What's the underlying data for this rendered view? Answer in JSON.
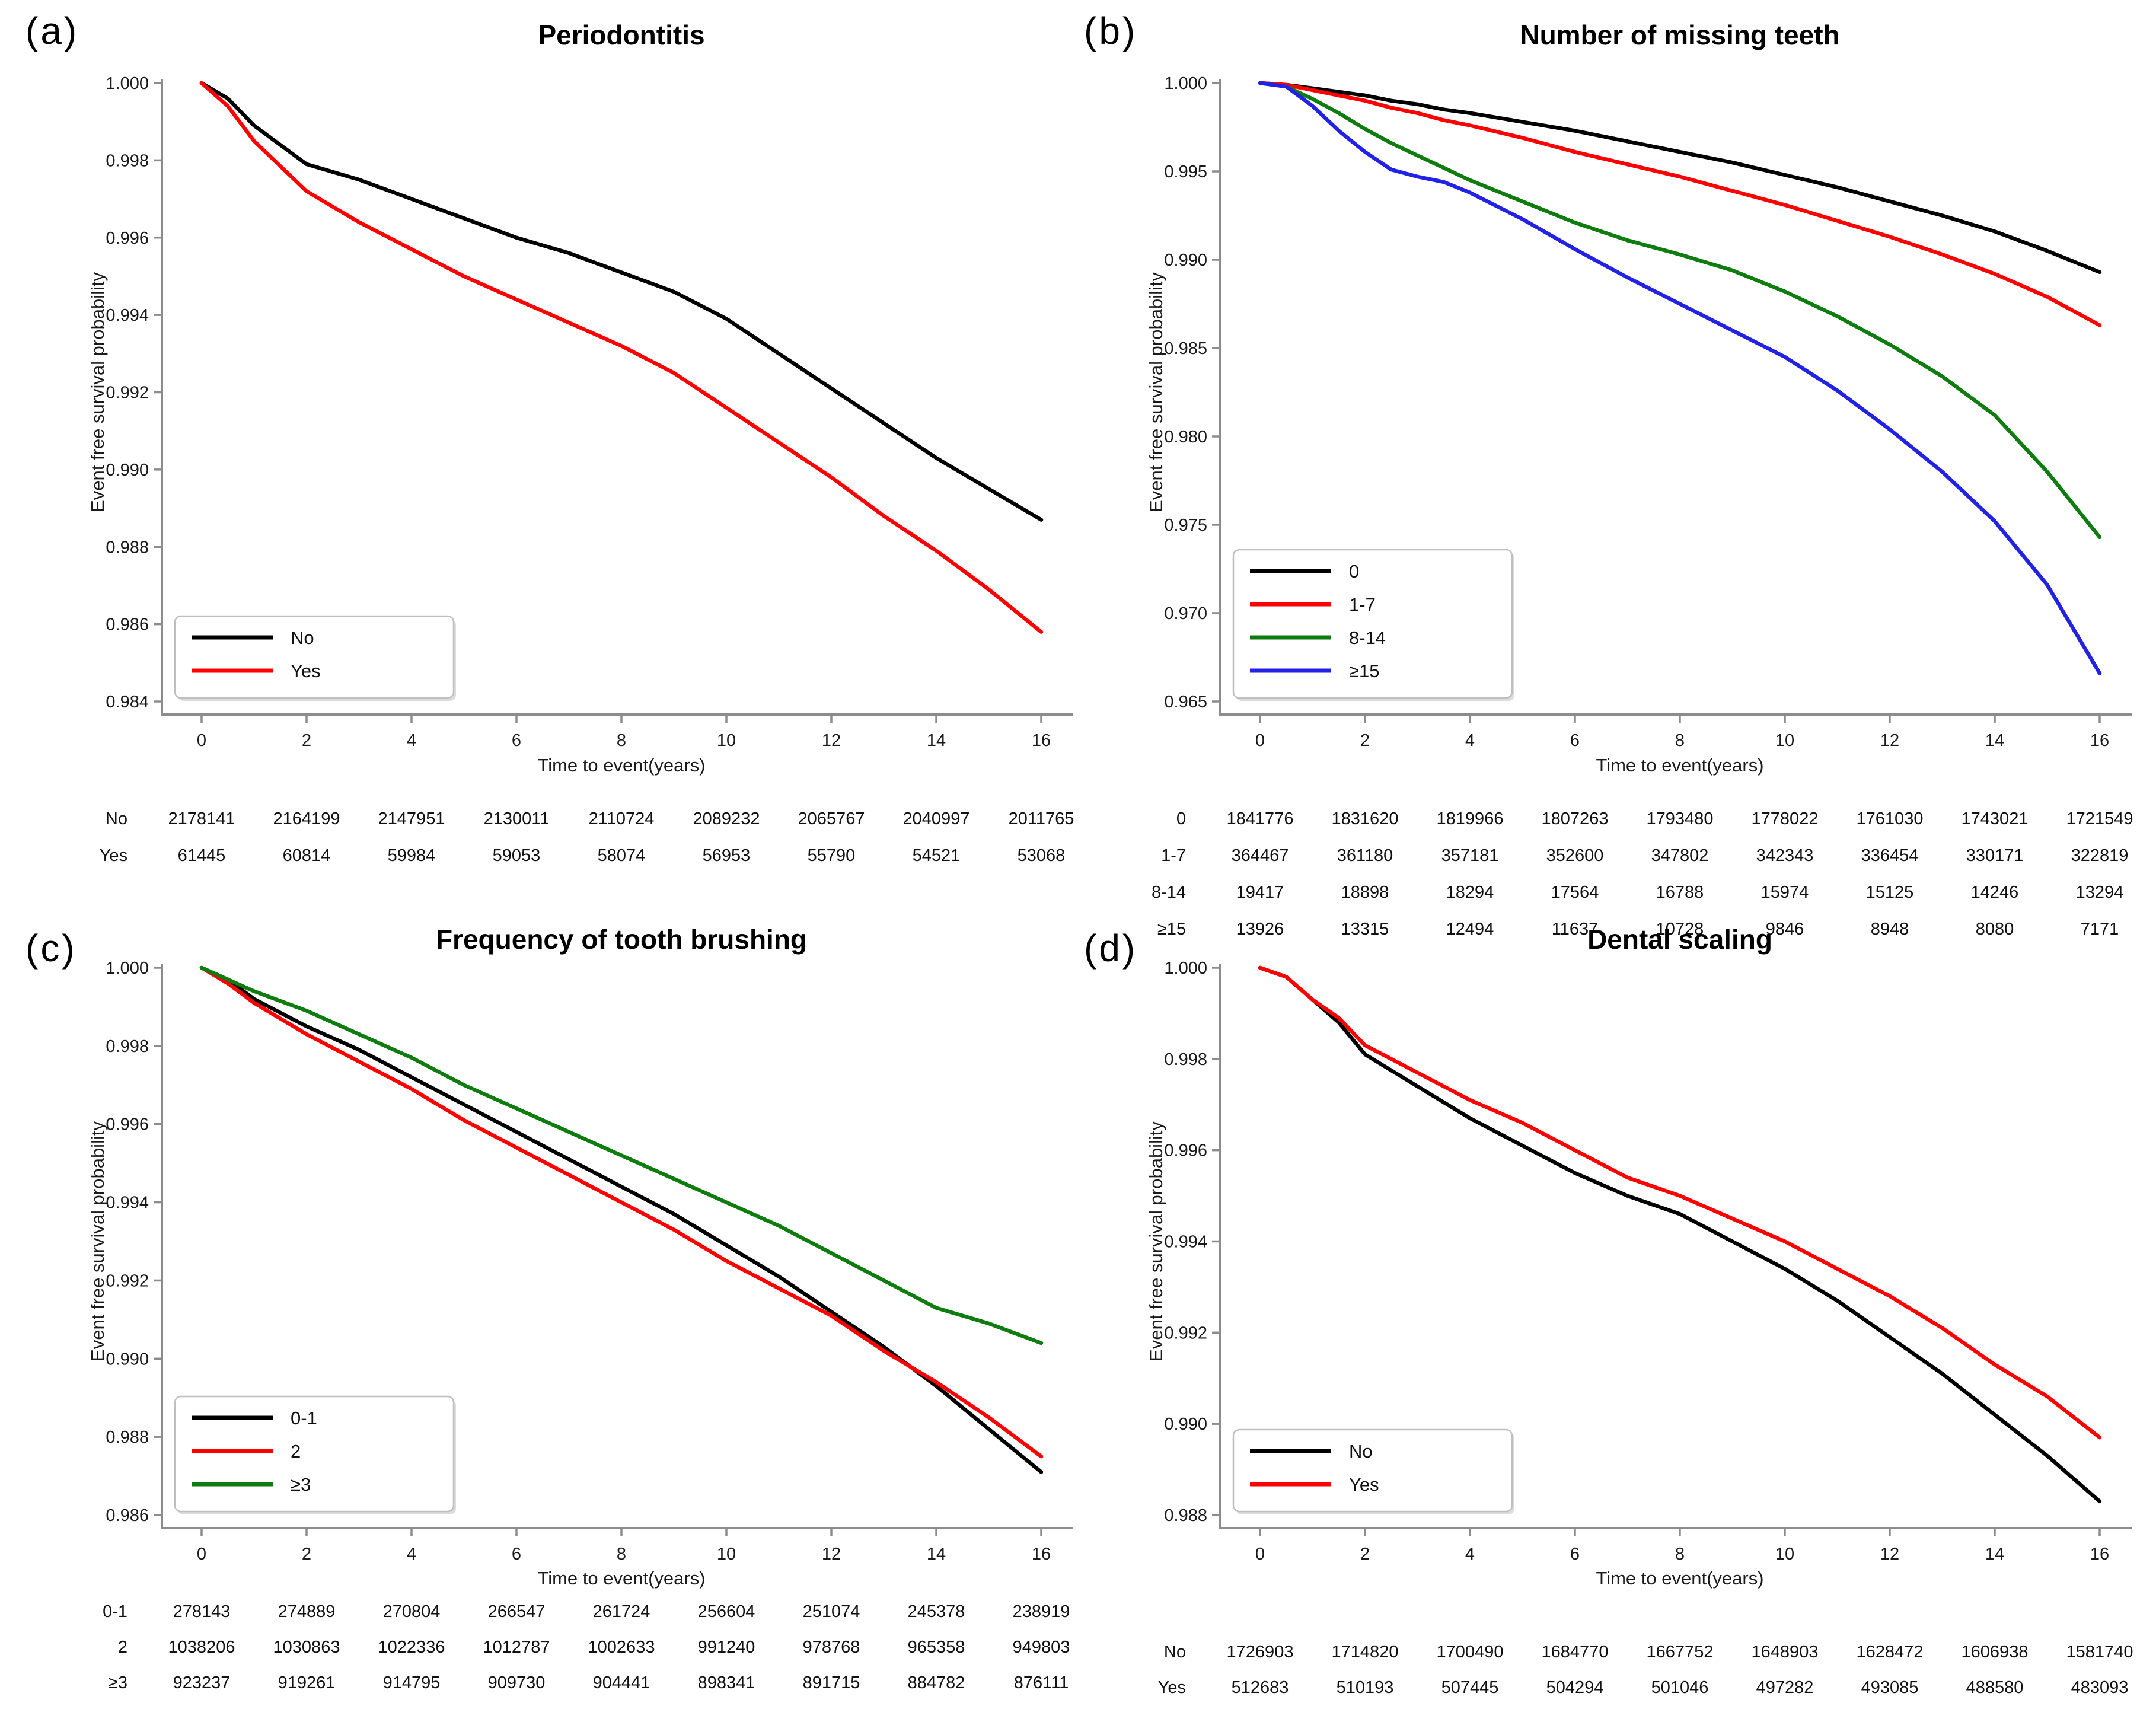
{
  "figure_caption_letters": [
    "(a)",
    "(b)",
    "(c)",
    "(d)"
  ],
  "chart_data": [
    {
      "type": "line",
      "panel_label": "(a)",
      "title": "Periodontitis",
      "xlabel": "Time to event(years)",
      "ylabel": "Event free survival probability",
      "xlim": [
        0,
        16
      ],
      "xticks": [
        0,
        2,
        4,
        6,
        8,
        10,
        12,
        14,
        16
      ],
      "ylim": [
        0.984,
        1.0
      ],
      "ytick_step": 0.002,
      "grid": false,
      "legend_position": "bottom-left",
      "series": [
        {
          "name": "No",
          "color": "#000000",
          "x": [
            0,
            0.5,
            1,
            2,
            3,
            4,
            5,
            6,
            7,
            8,
            9,
            10,
            11,
            12,
            13,
            14,
            15,
            16
          ],
          "y": [
            1.0,
            0.9996,
            0.9989,
            0.9979,
            0.9975,
            0.997,
            0.9965,
            0.996,
            0.9956,
            0.9951,
            0.9946,
            0.9939,
            0.993,
            0.9921,
            0.9912,
            0.9903,
            0.9895,
            0.9887
          ]
        },
        {
          "name": "Yes",
          "color": "#ff0000",
          "x": [
            0,
            0.5,
            1,
            2,
            3,
            4,
            5,
            6,
            7,
            8,
            9,
            10,
            11,
            12,
            13,
            14,
            15,
            16
          ],
          "y": [
            1.0,
            0.9994,
            0.9985,
            0.9972,
            0.9964,
            0.9957,
            0.995,
            0.9944,
            0.9938,
            0.9932,
            0.9925,
            0.9916,
            0.9907,
            0.9898,
            0.9888,
            0.9879,
            0.9869,
            0.9858
          ]
        }
      ],
      "risk_table": [
        {
          "label": "No",
          "counts": [
            2178141,
            2164199,
            2147951,
            2130011,
            2110724,
            2089232,
            2065767,
            2040997,
            2011765
          ]
        },
        {
          "label": "Yes",
          "counts": [
            61445,
            60814,
            59984,
            59053,
            58074,
            56953,
            55790,
            54521,
            53068
          ]
        }
      ]
    },
    {
      "type": "line",
      "panel_label": "(b)",
      "title": "Number of missing teeth",
      "xlabel": "Time to event(years)",
      "ylabel": "Event free survival probability",
      "xlim": [
        0,
        16
      ],
      "xticks": [
        0,
        2,
        4,
        6,
        8,
        10,
        12,
        14,
        16
      ],
      "ylim": [
        0.965,
        1.0
      ],
      "ytick_step": 0.005,
      "grid": false,
      "legend_position": "bottom-left",
      "series": [
        {
          "name": "0",
          "color": "#000000",
          "x": [
            0,
            0.5,
            1,
            1.5,
            2,
            2.5,
            3,
            3.5,
            4,
            5,
            6,
            7,
            8,
            9,
            10,
            11,
            12,
            13,
            14,
            15,
            16
          ],
          "y": [
            1.0,
            0.9999,
            0.9997,
            0.9995,
            0.9993,
            0.999,
            0.9988,
            0.9985,
            0.9983,
            0.9978,
            0.9973,
            0.9967,
            0.9961,
            0.9955,
            0.9948,
            0.9941,
            0.9933,
            0.9925,
            0.9916,
            0.9905,
            0.9893
          ]
        },
        {
          "name": "1-7",
          "color": "#ff0000",
          "x": [
            0,
            0.5,
            1,
            1.5,
            2,
            2.5,
            3,
            3.5,
            4,
            5,
            6,
            7,
            8,
            9,
            10,
            11,
            12,
            13,
            14,
            15,
            16
          ],
          "y": [
            1.0,
            0.9999,
            0.9996,
            0.9993,
            0.999,
            0.9986,
            0.9983,
            0.9979,
            0.9976,
            0.9969,
            0.9961,
            0.9954,
            0.9947,
            0.9939,
            0.9931,
            0.9922,
            0.9913,
            0.9903,
            0.9892,
            0.9879,
            0.9863
          ]
        },
        {
          "name": "8-14",
          "color": "#0e7c0e",
          "x": [
            0,
            0.5,
            1,
            1.5,
            2,
            2.5,
            3,
            3.5,
            4,
            5,
            6,
            7,
            8,
            9,
            10,
            11,
            12,
            13,
            14,
            15,
            16
          ],
          "y": [
            1.0,
            0.9998,
            0.9991,
            0.9983,
            0.9974,
            0.9966,
            0.9959,
            0.9952,
            0.9945,
            0.9933,
            0.9921,
            0.9911,
            0.9903,
            0.9894,
            0.9882,
            0.9868,
            0.9852,
            0.9834,
            0.9812,
            0.978,
            0.9743
          ]
        },
        {
          "name": "≥15",
          "color": "#2222e6",
          "x": [
            0,
            0.5,
            1,
            1.5,
            2,
            2.5,
            3,
            3.5,
            4,
            5,
            6,
            7,
            8,
            9,
            10,
            11,
            12,
            13,
            14,
            15,
            16
          ],
          "y": [
            1.0,
            0.9998,
            0.9987,
            0.9973,
            0.9961,
            0.9951,
            0.9947,
            0.9944,
            0.9938,
            0.9923,
            0.9906,
            0.989,
            0.9875,
            0.986,
            0.9845,
            0.9826,
            0.9804,
            0.978,
            0.9752,
            0.9716,
            0.9666
          ]
        }
      ],
      "risk_table": [
        {
          "label": "0",
          "counts": [
            1841776,
            1831620,
            1819966,
            1807263,
            1793480,
            1778022,
            1761030,
            1743021,
            1721549
          ]
        },
        {
          "label": "1-7",
          "counts": [
            364467,
            361180,
            357181,
            352600,
            347802,
            342343,
            336454,
            330171,
            322819
          ]
        },
        {
          "label": "8-14",
          "counts": [
            19417,
            18898,
            18294,
            17564,
            16788,
            15974,
            15125,
            14246,
            13294
          ]
        },
        {
          "label": "≥15",
          "counts": [
            13926,
            13315,
            12494,
            11637,
            10728,
            9846,
            8948,
            8080,
            7171
          ]
        }
      ]
    },
    {
      "type": "line",
      "panel_label": "(c)",
      "title": "Frequency of tooth brushing",
      "xlabel": "Time to event(years)",
      "ylabel": "Event free survival probability",
      "xlim": [
        0,
        16
      ],
      "xticks": [
        0,
        2,
        4,
        6,
        8,
        10,
        12,
        14,
        16
      ],
      "ylim": [
        0.986,
        1.0
      ],
      "ytick_step": 0.002,
      "grid": false,
      "legend_position": "bottom-left",
      "series": [
        {
          "name": "0-1",
          "color": "#000000",
          "x": [
            0,
            0.5,
            1,
            2,
            3,
            4,
            5,
            6,
            7,
            8,
            9,
            10,
            11,
            12,
            13,
            14,
            15,
            16
          ],
          "y": [
            1.0,
            0.9997,
            0.9992,
            0.9985,
            0.9979,
            0.9972,
            0.9965,
            0.9958,
            0.9951,
            0.9944,
            0.9937,
            0.9929,
            0.9921,
            0.9912,
            0.9903,
            0.9893,
            0.9882,
            0.9871
          ]
        },
        {
          "name": "2",
          "color": "#ff0000",
          "x": [
            0,
            0.5,
            1,
            2,
            3,
            4,
            5,
            6,
            7,
            8,
            9,
            10,
            11,
            12,
            13,
            14,
            15,
            16
          ],
          "y": [
            1.0,
            0.9996,
            0.9991,
            0.9983,
            0.9976,
            0.9969,
            0.9961,
            0.9954,
            0.9947,
            0.994,
            0.9933,
            0.9925,
            0.9918,
            0.9911,
            0.9902,
            0.9894,
            0.9885,
            0.9875
          ]
        },
        {
          "name": "≥3",
          "color": "#0e7c0e",
          "x": [
            0,
            0.5,
            1,
            2,
            3,
            4,
            5,
            6,
            7,
            8,
            9,
            10,
            11,
            12,
            13,
            14,
            15,
            16
          ],
          "y": [
            1.0,
            0.9997,
            0.9994,
            0.9989,
            0.9983,
            0.9977,
            0.997,
            0.9964,
            0.9958,
            0.9952,
            0.9946,
            0.994,
            0.9934,
            0.9927,
            0.992,
            0.9913,
            0.9909,
            0.9904
          ]
        }
      ],
      "risk_table": [
        {
          "label": "0-1",
          "counts": [
            278143,
            274889,
            270804,
            266547,
            261724,
            256604,
            251074,
            245378,
            238919
          ]
        },
        {
          "label": "2",
          "counts": [
            1038206,
            1030863,
            1022336,
            1012787,
            1002633,
            991240,
            978768,
            965358,
            949803
          ]
        },
        {
          "label": "≥3",
          "counts": [
            923237,
            919261,
            914795,
            909730,
            904441,
            898341,
            891715,
            884782,
            876111
          ]
        }
      ]
    },
    {
      "type": "line",
      "panel_label": "(d)",
      "title": "Dental scaling",
      "xlabel": "Time to event(years)",
      "ylabel": "Event free survival probability",
      "xlim": [
        0,
        16
      ],
      "xticks": [
        0,
        2,
        4,
        6,
        8,
        10,
        12,
        14,
        16
      ],
      "ylim": [
        0.988,
        1.0
      ],
      "ytick_step": 0.002,
      "grid": false,
      "legend_position": "bottom-left",
      "series": [
        {
          "name": "No",
          "color": "#000000",
          "x": [
            0,
            0.5,
            1,
            1.5,
            2,
            3,
            4,
            5,
            6,
            7,
            8,
            9,
            10,
            11,
            12,
            13,
            14,
            15,
            16
          ],
          "y": [
            1.0,
            0.9998,
            0.9993,
            0.9988,
            0.9981,
            0.9974,
            0.9967,
            0.9961,
            0.9955,
            0.995,
            0.9946,
            0.994,
            0.9934,
            0.9927,
            0.9919,
            0.9911,
            0.9902,
            0.9893,
            0.9883
          ]
        },
        {
          "name": "Yes",
          "color": "#ff0000",
          "x": [
            0,
            0.5,
            1,
            1.5,
            2,
            3,
            4,
            5,
            6,
            7,
            8,
            9,
            10,
            11,
            12,
            13,
            14,
            15,
            16
          ],
          "y": [
            1.0,
            0.9998,
            0.9993,
            0.9989,
            0.9983,
            0.9977,
            0.9971,
            0.9966,
            0.996,
            0.9954,
            0.995,
            0.9945,
            0.994,
            0.9934,
            0.9928,
            0.9921,
            0.9913,
            0.9906,
            0.9897
          ]
        }
      ],
      "risk_table": [
        {
          "label": "No",
          "counts": [
            1726903,
            1714820,
            1700490,
            1684770,
            1667752,
            1648903,
            1628472,
            1606938,
            1581740
          ]
        },
        {
          "label": "Yes",
          "counts": [
            512683,
            510193,
            507445,
            504294,
            501046,
            497282,
            493085,
            488580,
            483093
          ]
        }
      ]
    }
  ]
}
